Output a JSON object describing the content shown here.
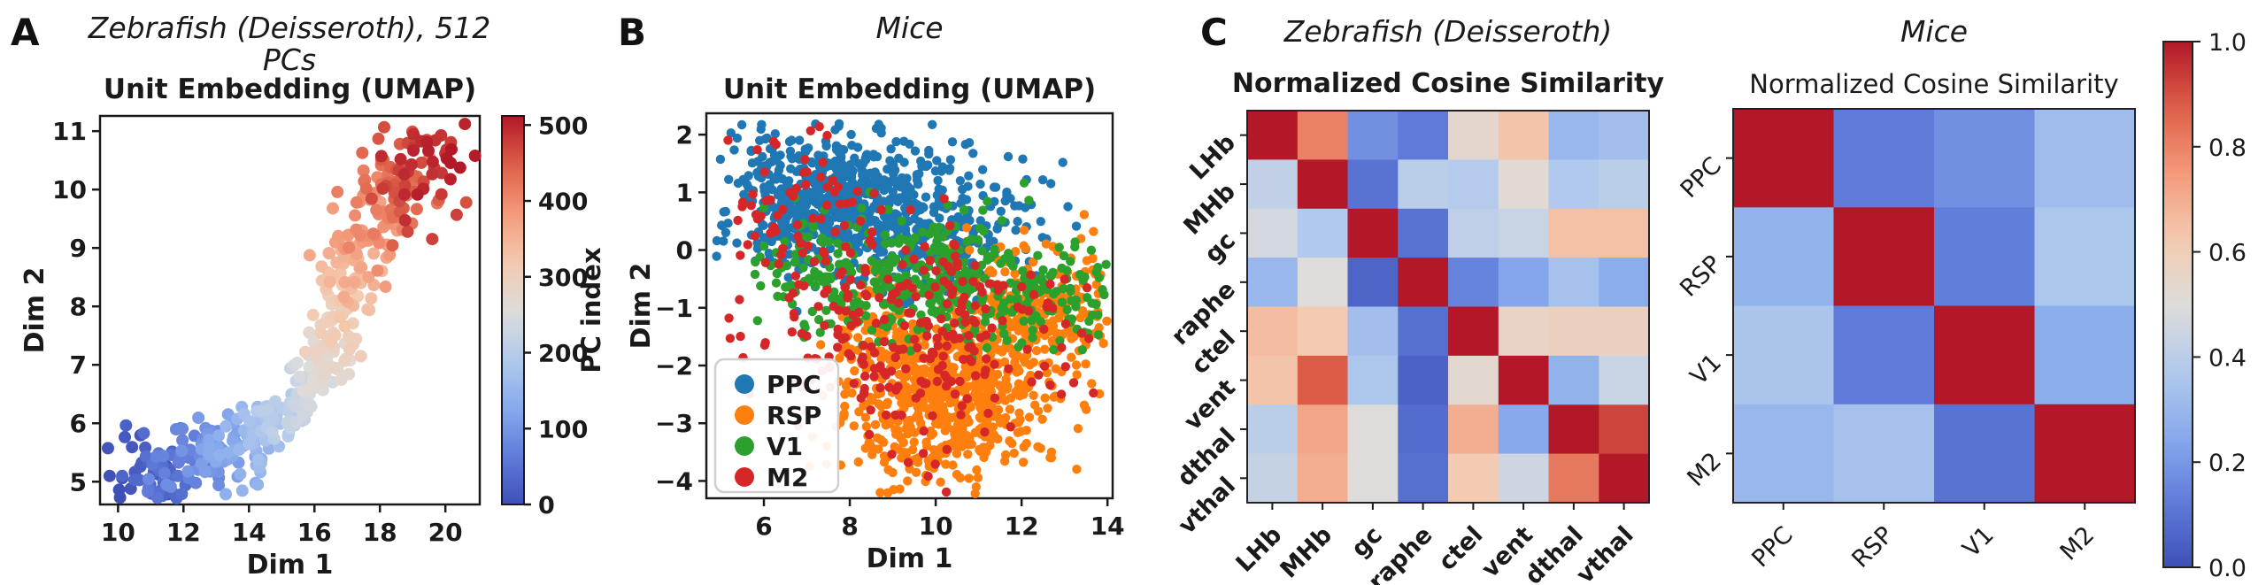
{
  "figure": {
    "background": "#ffffff",
    "panels": [
      {
        "id": "A",
        "label": "A"
      },
      {
        "id": "B",
        "label": "B"
      },
      {
        "id": "C",
        "label": "C"
      }
    ]
  },
  "chart_data": [
    {
      "id": "zebrafish_umap",
      "type": "scatter",
      "suptitle": "Zebrafish (Deisseroth), 512 PCs",
      "title": "Unit Embedding (UMAP)",
      "xlabel": "Dim 1",
      "ylabel": "Dim 2",
      "xlim": [
        9.45,
        21.05
      ],
      "ylim": [
        4.61,
        11.26
      ],
      "xticks": [
        10,
        12,
        14,
        16,
        18,
        20
      ],
      "yticks": [
        5,
        6,
        7,
        8,
        9,
        10,
        11
      ],
      "grid": false,
      "n_points": 512,
      "colormap": "coolwarm",
      "color_by": "PC index",
      "colorbar": {
        "label": "PC index",
        "ticks": [
          0,
          100,
          200,
          300,
          400,
          500
        ],
        "vmin": 0,
        "vmax": 512
      },
      "spine": [
        [
          10.3,
          4.95
        ],
        [
          11.1,
          5.1
        ],
        [
          12.0,
          5.3
        ],
        [
          12.9,
          5.45
        ],
        [
          13.8,
          5.7
        ],
        [
          14.7,
          6.0
        ],
        [
          15.5,
          6.4
        ],
        [
          16.1,
          6.9
        ],
        [
          16.6,
          7.5
        ],
        [
          17.0,
          8.2
        ],
        [
          17.4,
          8.9
        ],
        [
          17.9,
          9.6
        ],
        [
          18.5,
          10.1
        ],
        [
          19.3,
          10.35
        ],
        [
          20.0,
          10.45
        ]
      ],
      "spread_schedule": [
        {
          "t_max": 0.3,
          "sx": 0.55,
          "sy": 0.35
        },
        {
          "t_max": 0.58,
          "sx": 0.35,
          "sy": 0.28
        },
        {
          "t_max": 0.8,
          "sx": 0.5,
          "sy": 0.38
        },
        {
          "t_max": 1.01,
          "sx": 0.62,
          "sy": 0.42
        }
      ]
    },
    {
      "id": "mice_umap",
      "type": "scatter",
      "suptitle": "Mice",
      "title": "Unit Embedding (UMAP)",
      "xlabel": "Dim 1",
      "ylabel": "Dim 2",
      "xlim": [
        4.66,
        14.12
      ],
      "ylim": [
        -4.3,
        2.37
      ],
      "xticks": [
        6,
        8,
        10,
        12,
        14
      ],
      "yticks": [
        2,
        1,
        0,
        -1,
        -2,
        -3,
        -4
      ],
      "grid": false,
      "legend": {
        "position": "lower left",
        "items": [
          {
            "label": "PPC",
            "color": "#1f77b4"
          },
          {
            "label": "RSP",
            "color": "#ff7f0e"
          },
          {
            "label": "V1",
            "color": "#2ca02c"
          },
          {
            "label": "M2",
            "color": "#d62728"
          }
        ]
      },
      "clusters": [
        {
          "label": "PPC",
          "color": "#1f77b4",
          "components": [
            {
              "center": [
                7.3,
                1.0
              ],
              "spread": [
                1.15,
                0.58
              ],
              "n": 500
            },
            {
              "center": [
                9.6,
                0.35
              ],
              "spread": [
                1.4,
                0.6
              ],
              "n": 360
            }
          ]
        },
        {
          "label": "RSP",
          "color": "#ff7f0e",
          "components": [
            {
              "center": [
                10.3,
                -2.5
              ],
              "spread": [
                1.25,
                0.78
              ],
              "n": 620
            },
            {
              "center": [
                12.4,
                -1.0
              ],
              "spread": [
                0.95,
                0.6
              ],
              "n": 210
            },
            {
              "center": [
                8.9,
                -1.7
              ],
              "spread": [
                0.8,
                0.5
              ],
              "n": 90
            }
          ]
        },
        {
          "label": "V1",
          "color": "#2ca02c",
          "components": [
            {
              "center": [
                9.6,
                -0.55
              ],
              "spread": [
                1.35,
                0.6
              ],
              "n": 270
            },
            {
              "center": [
                12.7,
                -0.7
              ],
              "spread": [
                0.9,
                0.5
              ],
              "n": 120
            },
            {
              "center": [
                6.9,
                -0.3
              ],
              "spread": [
                0.75,
                0.45
              ],
              "n": 55
            }
          ]
        },
        {
          "label": "M2",
          "color": "#d62728",
          "components": [
            {
              "center": [
                8.3,
                -1.2
              ],
              "spread": [
                1.7,
                0.95
              ],
              "n": 145
            },
            {
              "center": [
                10.6,
                -1.6
              ],
              "spread": [
                1.5,
                0.95
              ],
              "n": 120
            },
            {
              "center": [
                6.6,
                0.6
              ],
              "spread": [
                0.9,
                0.75
              ],
              "n": 60
            }
          ]
        }
      ]
    },
    {
      "id": "zebrafish_cosine_similarity",
      "type": "heatmap",
      "suptitle": "Zebrafish (Deisseroth)",
      "title": "Normalized Cosine Similarity",
      "labels": [
        "LHb",
        "MHb",
        "gc",
        "raphe",
        "ctel",
        "vent",
        "dthal",
        "vthal"
      ],
      "vmin": 0,
      "vmax": 1,
      "colormap": "coolwarm",
      "values": [
        [
          1.0,
          0.8,
          0.18,
          0.12,
          0.54,
          0.64,
          0.3,
          0.33
        ],
        [
          0.42,
          1.0,
          0.1,
          0.4,
          0.38,
          0.52,
          0.37,
          0.4
        ],
        [
          0.47,
          0.37,
          1.0,
          0.1,
          0.41,
          0.44,
          0.65,
          0.65
        ],
        [
          0.3,
          0.5,
          0.06,
          1.0,
          0.14,
          0.24,
          0.34,
          0.26
        ],
        [
          0.66,
          0.62,
          0.33,
          0.09,
          1.0,
          0.56,
          0.58,
          0.58
        ],
        [
          0.64,
          0.88,
          0.36,
          0.05,
          0.53,
          1.0,
          0.28,
          0.44
        ],
        [
          0.4,
          0.72,
          0.5,
          0.08,
          0.7,
          0.25,
          1.0,
          0.92
        ],
        [
          0.43,
          0.7,
          0.5,
          0.09,
          0.62,
          0.45,
          0.82,
          1.0
        ]
      ]
    },
    {
      "id": "mice_cosine_similarity",
      "type": "heatmap",
      "suptitle": "Mice",
      "title": "Normalized Cosine Similarity",
      "labels": [
        "PPC",
        "RSP",
        "V1",
        "M2"
      ],
      "vmin": 0,
      "vmax": 1,
      "colormap": "coolwarm",
      "values": [
        [
          1.0,
          0.12,
          0.18,
          0.32
        ],
        [
          0.28,
          1.0,
          0.13,
          0.36
        ],
        [
          0.35,
          0.12,
          1.0,
          0.26
        ],
        [
          0.3,
          0.34,
          0.1,
          1.0
        ]
      ],
      "colorbar": {
        "ticks": [
          0.0,
          0.2,
          0.4,
          0.6,
          0.8,
          1.0
        ],
        "vmin": 0.0,
        "vmax": 1.0
      }
    }
  ]
}
